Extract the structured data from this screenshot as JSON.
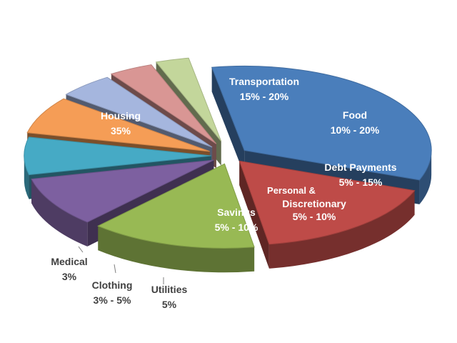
{
  "chart_data": {
    "type": "pie",
    "title": "",
    "style": "3d-exploded",
    "slices": [
      {
        "name": "Housing",
        "label": "35%",
        "value": 35,
        "color": "#4a7ebb"
      },
      {
        "name": "Transportation",
        "label": "15% - 20%",
        "value": 17.5,
        "color": "#be4b48"
      },
      {
        "name": "Food",
        "label": "10% - 20%",
        "value": 15,
        "color": "#98b954"
      },
      {
        "name": "Debt Payments",
        "label": "5% - 15%",
        "value": 10,
        "color": "#7d60a0"
      },
      {
        "name": "Personal & Discretionary",
        "name_lines": [
          "Personal &",
          "Discretionary"
        ],
        "label": "5% - 10%",
        "value": 7.5,
        "color": "#46aac5"
      },
      {
        "name": "Savings",
        "label": "5% - 10%",
        "value": 7.5,
        "color": "#f59d56"
      },
      {
        "name": "Utilities",
        "label": "5%",
        "value": 5,
        "color": "#a5b6de"
      },
      {
        "name": "Clothing",
        "label": "3% - 5%",
        "value": 4,
        "color": "#d99694"
      },
      {
        "name": "Medical",
        "label": "3%",
        "value": 3,
        "color": "#c3d69b"
      }
    ]
  }
}
